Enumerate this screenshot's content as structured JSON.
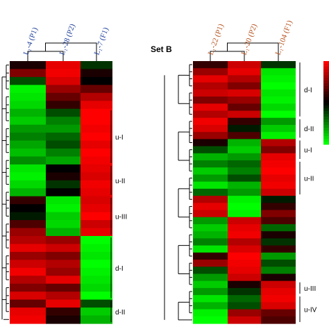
{
  "chart_data": [
    {
      "type": "heatmap",
      "title": "",
      "columns": [
        "L₁-4 (P1)",
        "L₁-28 (P2)",
        "L₁-7 (F1)"
      ],
      "column_label_color": "#1f3f99",
      "color_scale": {
        "low": "#00ff00",
        "mid": "#000000",
        "high": "#ff0000",
        "range": [
          -1,
          1
        ]
      },
      "clusters": [
        {
          "label": "u-I",
          "rows": [
            6,
            12
          ]
        },
        {
          "label": "u-II",
          "rows": [
            13,
            16
          ]
        },
        {
          "label": "u-III",
          "rows": [
            17,
            21
          ]
        },
        {
          "label": "d-I",
          "rows": [
            22,
            29
          ]
        },
        {
          "label": "d-II",
          "rows": [
            30,
            32
          ]
        }
      ],
      "rows": [
        [
          0.1,
          0.9,
          -0.2
        ],
        [
          0.5,
          0.95,
          0.1
        ],
        [
          -0.3,
          0.85,
          0.0
        ],
        [
          -0.95,
          0.6,
          0.4
        ],
        [
          -0.9,
          0.4,
          0.7
        ],
        [
          -0.85,
          0.2,
          0.9
        ],
        [
          -0.7,
          -0.3,
          1.0
        ],
        [
          -0.8,
          -0.5,
          1.0
        ],
        [
          -0.6,
          -0.6,
          0.95
        ],
        [
          -0.5,
          -0.4,
          1.0
        ],
        [
          -0.65,
          -0.3,
          0.9
        ],
        [
          -0.75,
          -0.5,
          1.0
        ],
        [
          -0.55,
          -0.65,
          0.95
        ],
        [
          -0.9,
          0.0,
          0.9
        ],
        [
          -0.95,
          0.1,
          0.85
        ],
        [
          -0.85,
          -0.2,
          0.95
        ],
        [
          -0.7,
          0.0,
          0.9
        ],
        [
          0.2,
          -0.9,
          0.85
        ],
        [
          0.0,
          -0.95,
          0.9
        ],
        [
          -0.1,
          -0.8,
          1.0
        ],
        [
          0.3,
          -0.85,
          0.8
        ],
        [
          0.6,
          -0.7,
          0.9
        ],
        [
          0.7,
          0.6,
          -1.0
        ],
        [
          0.9,
          0.8,
          -0.95
        ],
        [
          0.6,
          0.5,
          -0.9
        ],
        [
          0.8,
          0.7,
          -1.0
        ],
        [
          0.95,
          0.6,
          -0.95
        ],
        [
          0.7,
          0.9,
          -0.9
        ],
        [
          0.5,
          0.4,
          -0.85
        ],
        [
          0.85,
          0.7,
          -1.0
        ],
        [
          0.4,
          0.9,
          -0.3
        ],
        [
          0.9,
          0.2,
          -0.8
        ],
        [
          0.95,
          0.1,
          -0.7
        ]
      ]
    },
    {
      "type": "heatmap",
      "title": "Set B",
      "columns": [
        "L₁-22 (P1)",
        "L₁-20 (P2)",
        "L₁-104 (F1)"
      ],
      "column_label_color": "#b5521e",
      "color_scale": {
        "low": "#00ff00",
        "mid": "#000000",
        "high": "#ff0000",
        "range": [
          -1,
          1
        ]
      },
      "clusters": [
        {
          "label": "d-I",
          "rows": [
            0,
            7
          ]
        },
        {
          "label": "d-II",
          "rows": [
            8,
            10
          ]
        },
        {
          "label": "u-I",
          "rows": [
            11,
            13
          ]
        },
        {
          "label": "u-II",
          "rows": [
            14,
            18
          ]
        },
        {
          "label": "u-III",
          "rows": [
            31,
            32
          ]
        },
        {
          "label": "u-IV",
          "rows": [
            33,
            36
          ]
        }
      ],
      "rows": [
        [
          0.2,
          0.8,
          -0.2
        ],
        [
          0.6,
          0.9,
          -0.9
        ],
        [
          0.9,
          0.7,
          -0.95
        ],
        [
          0.7,
          0.5,
          -1.0
        ],
        [
          0.8,
          0.85,
          -0.9
        ],
        [
          0.5,
          0.6,
          -0.95
        ],
        [
          0.9,
          0.4,
          -0.85
        ],
        [
          0.7,
          0.8,
          -1.0
        ],
        [
          0.95,
          0.2,
          -0.6
        ],
        [
          0.85,
          -0.1,
          -0.8
        ],
        [
          0.6,
          0.3,
          -0.95
        ],
        [
          0.1,
          -0.7,
          0.7
        ],
        [
          -0.3,
          -0.8,
          0.5
        ],
        [
          -0.7,
          -0.6,
          0.9
        ],
        [
          -0.5,
          -0.4,
          0.95
        ],
        [
          -0.8,
          -0.5,
          1.0
        ],
        [
          -0.6,
          -0.3,
          0.9
        ],
        [
          -0.9,
          -0.7,
          0.95
        ],
        [
          -0.4,
          -0.6,
          0.8
        ],
        [
          0.7,
          -0.95,
          -0.1
        ],
        [
          0.9,
          -1.0,
          0.2
        ],
        [
          0.8,
          -0.95,
          0.5
        ],
        [
          -0.6,
          0.8,
          0.3
        ],
        [
          -0.8,
          0.9,
          -0.4
        ],
        [
          -0.7,
          0.95,
          0.1
        ],
        [
          -0.5,
          0.7,
          -0.2
        ],
        [
          -0.9,
          0.85,
          0.2
        ],
        [
          0.2,
          1.0,
          -0.6
        ],
        [
          0.6,
          0.95,
          -0.3
        ],
        [
          -0.3,
          0.9,
          -0.5
        ],
        [
          -0.6,
          0.8,
          0.1
        ],
        [
          -0.8,
          0.1,
          0.8
        ],
        [
          -0.6,
          -0.2,
          0.9
        ],
        [
          -0.9,
          -0.4,
          0.95
        ],
        [
          -0.7,
          -0.3,
          0.85
        ],
        [
          -0.95,
          0.6,
          0.4
        ],
        [
          -1.0,
          0.8,
          0.3
        ]
      ]
    }
  ]
}
